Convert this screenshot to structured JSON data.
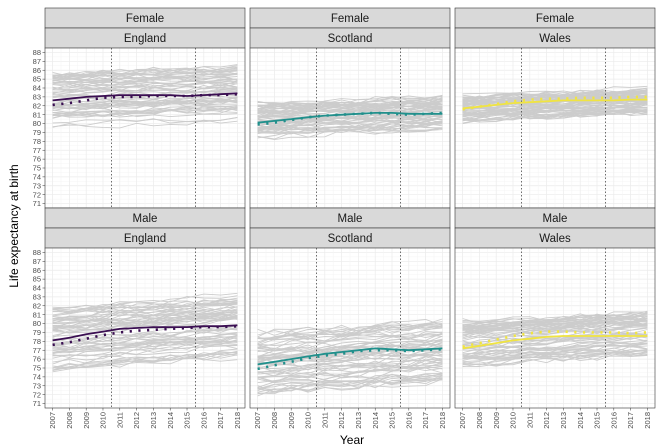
{
  "chart_data": {
    "type": "line",
    "facet_rows": [
      "Female",
      "Male"
    ],
    "facet_cols": [
      "England",
      "Scotland",
      "Wales"
    ],
    "xlabel": "Year",
    "ylabel": "Life expectancy at birth",
    "x": [
      2007,
      2008,
      2009,
      2010,
      2011,
      2012,
      2013,
      2014,
      2015,
      2016,
      2017,
      2018
    ],
    "x_ticks": [
      "2007",
      "2008",
      "2009",
      "2010",
      "2011",
      "2012",
      "2013",
      "2014",
      "2015",
      "2016",
      "2017",
      "2018"
    ],
    "ylim": [
      70.5,
      88.5
    ],
    "y_ticks": [
      71,
      72,
      73,
      74,
      75,
      76,
      77,
      78,
      79,
      80,
      81,
      82,
      83,
      84,
      85,
      86,
      87,
      88
    ],
    "reference_lines_x": [
      2010.5,
      2015.5
    ],
    "grid": true,
    "colors": {
      "England": "#3b0f52",
      "Scotland": "#21908c",
      "Wales": "#f0e442",
      "background_lines": "#cccccc"
    },
    "panels": [
      {
        "sex": "Female",
        "nation": "England",
        "solid": [
          82.6,
          82.8,
          83.0,
          83.1,
          83.2,
          83.2,
          83.2,
          83.2,
          83.1,
          83.2,
          83.3,
          83.4
        ],
        "dotted": [
          82.1,
          82.3,
          82.6,
          82.9,
          83.0,
          83.0,
          83.1,
          83.1,
          83.1,
          83.2,
          83.2,
          83.3
        ],
        "band": [
          79.8,
          86.0
        ],
        "band_step": [
          1.0,
          1.1
        ]
      },
      {
        "sex": "Female",
        "nation": "Scotland",
        "solid": [
          80.1,
          80.3,
          80.5,
          80.7,
          80.9,
          81.0,
          81.1,
          81.2,
          81.2,
          81.1,
          81.1,
          81.1
        ],
        "dotted": [
          79.9,
          80.1,
          80.4,
          80.7,
          80.9,
          81.0,
          81.1,
          81.2,
          81.1,
          81.0,
          81.1,
          81.2
        ],
        "band": [
          78.9,
          82.6
        ],
        "band_step": [
          1.0,
          1.1
        ]
      },
      {
        "sex": "Female",
        "nation": "Wales",
        "solid": [
          81.7,
          81.9,
          82.1,
          82.3,
          82.4,
          82.5,
          82.6,
          82.6,
          82.6,
          82.6,
          82.7,
          82.7
        ],
        "dotted": [
          81.6,
          81.9,
          82.2,
          82.5,
          82.7,
          82.8,
          82.8,
          82.9,
          82.9,
          82.9,
          83.0,
          83.0
        ],
        "band": [
          80.8,
          83.5
        ],
        "band_step": [
          1.0,
          1.1
        ]
      },
      {
        "sex": "Male",
        "nation": "England",
        "solid": [
          78.1,
          78.4,
          78.8,
          79.1,
          79.4,
          79.5,
          79.6,
          79.6,
          79.6,
          79.7,
          79.7,
          79.8
        ],
        "dotted": [
          77.6,
          77.9,
          78.3,
          78.7,
          79.0,
          79.2,
          79.3,
          79.4,
          79.5,
          79.6,
          79.6,
          79.7
        ],
        "band": [
          75.5,
          82.5
        ],
        "band_step": [
          1.0,
          1.2
        ]
      },
      {
        "sex": "Male",
        "nation": "Scotland",
        "solid": [
          75.4,
          75.7,
          76.0,
          76.3,
          76.6,
          76.8,
          77.0,
          77.2,
          77.1,
          77.0,
          77.1,
          77.2
        ],
        "dotted": [
          74.9,
          75.3,
          75.7,
          76.1,
          76.4,
          76.6,
          76.9,
          77.0,
          77.0,
          76.9,
          77.0,
          77.1
        ],
        "band": [
          72.5,
          79.5
        ],
        "band_step": [
          1.0,
          1.3
        ]
      },
      {
        "sex": "Male",
        "nation": "Wales",
        "solid": [
          77.2,
          77.5,
          77.8,
          78.1,
          78.3,
          78.5,
          78.6,
          78.6,
          78.6,
          78.6,
          78.6,
          78.6
        ],
        "dotted": [
          77.4,
          77.8,
          78.2,
          78.6,
          78.9,
          79.1,
          79.1,
          79.0,
          79.0,
          79.0,
          78.9,
          79.0
        ],
        "band": [
          75.8,
          80.6
        ],
        "band_step": [
          1.0,
          1.1
        ]
      }
    ]
  }
}
